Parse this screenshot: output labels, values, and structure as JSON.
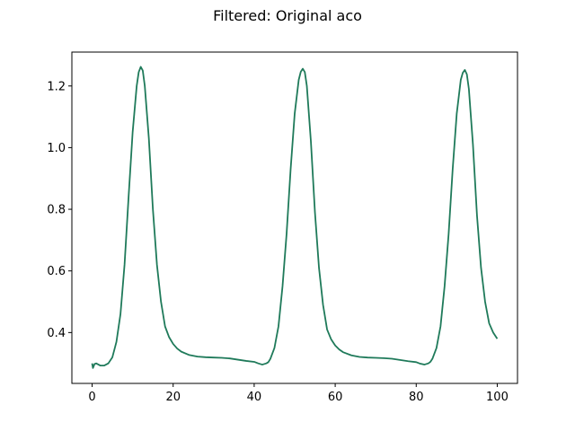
{
  "chart_data": {
    "type": "line",
    "title": "Filtered: Original aco",
    "xlabel": "",
    "ylabel": "",
    "xlim": [
      -5,
      105
    ],
    "ylim": [
      0.235,
      1.31
    ],
    "x_ticks": [
      0,
      20,
      40,
      60,
      80,
      100
    ],
    "x_tick_labels": [
      "0",
      "20",
      "40",
      "60",
      "80",
      "100"
    ],
    "y_ticks": [
      0.4,
      0.6,
      0.8,
      1.0,
      1.2
    ],
    "y_tick_labels": [
      "0.4",
      "0.6",
      "0.8",
      "1.0",
      "1.2"
    ],
    "grid": false,
    "legend": "none",
    "line_color": "#1f7a5a",
    "series": [
      {
        "x": [
          0,
          0.2,
          0.6,
          1,
          2,
          3,
          4,
          5,
          6,
          7,
          8,
          9,
          10,
          11,
          11.5,
          12,
          12.5,
          13,
          14,
          15,
          16,
          17,
          18,
          19,
          20,
          21,
          22,
          24,
          26,
          28,
          30,
          32,
          34,
          36,
          38,
          40,
          41,
          42,
          43,
          43.5,
          44,
          45,
          46,
          47,
          48,
          49,
          50,
          51,
          51.5,
          52,
          52.5,
          53,
          54,
          55,
          56,
          57,
          58,
          59,
          60,
          61,
          62,
          64,
          66,
          68,
          70,
          72,
          74,
          76,
          78,
          80,
          81,
          82,
          83,
          83.5,
          84,
          85,
          86,
          87,
          88,
          89,
          90,
          91,
          91.5,
          92,
          92.5,
          93,
          94,
          95,
          96,
          97,
          98,
          99,
          100
        ],
        "y": [
          0.3,
          0.285,
          0.298,
          0.3,
          0.293,
          0.293,
          0.3,
          0.32,
          0.37,
          0.46,
          0.62,
          0.84,
          1.05,
          1.2,
          1.245,
          1.262,
          1.25,
          1.2,
          1.03,
          0.8,
          0.62,
          0.5,
          0.42,
          0.385,
          0.363,
          0.348,
          0.338,
          0.327,
          0.322,
          0.32,
          0.319,
          0.318,
          0.316,
          0.312,
          0.308,
          0.305,
          0.3,
          0.296,
          0.3,
          0.304,
          0.315,
          0.35,
          0.42,
          0.55,
          0.72,
          0.93,
          1.11,
          1.22,
          1.246,
          1.256,
          1.245,
          1.2,
          1.02,
          0.79,
          0.61,
          0.49,
          0.41,
          0.378,
          0.358,
          0.345,
          0.336,
          0.326,
          0.321,
          0.319,
          0.318,
          0.317,
          0.315,
          0.311,
          0.307,
          0.304,
          0.299,
          0.296,
          0.3,
          0.305,
          0.315,
          0.35,
          0.42,
          0.55,
          0.72,
          0.93,
          1.11,
          1.22,
          1.243,
          1.252,
          1.238,
          1.19,
          1.01,
          0.78,
          0.61,
          0.5,
          0.43,
          0.4,
          0.38
        ]
      }
    ]
  }
}
